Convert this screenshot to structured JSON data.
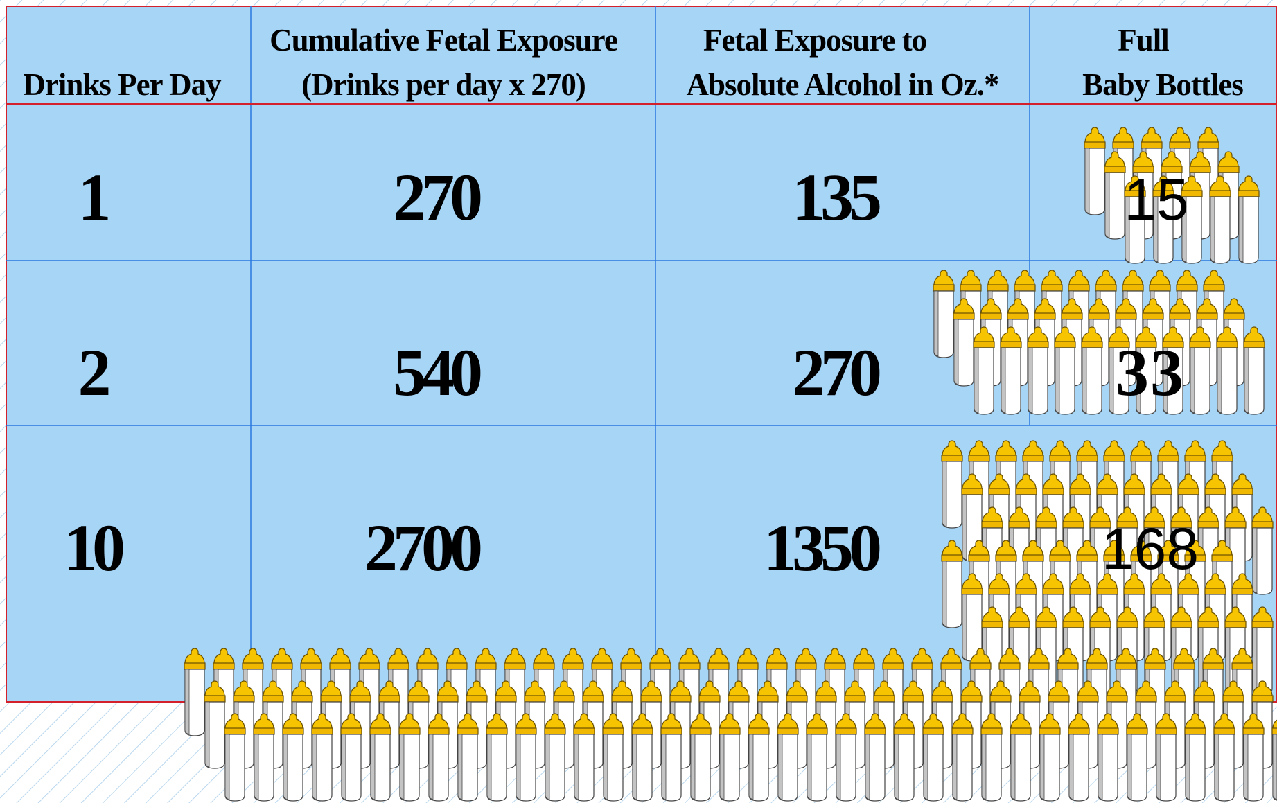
{
  "table": {
    "header": [
      [
        "Drinks Per Day"
      ],
      [
        "Cumulative Fetal Exposure",
        "(Drinks per day x 270)"
      ],
      [
        "Fetal Exposure to",
        "Absolute Alcohol in Oz.*"
      ],
      [
        "Full",
        "Baby Bottles"
      ]
    ],
    "rows": [
      [
        "1",
        "270",
        "135",
        "15"
      ],
      [
        "2",
        "540",
        "270",
        "33"
      ],
      [
        "10",
        "2700",
        "1350",
        "168"
      ]
    ]
  }
}
